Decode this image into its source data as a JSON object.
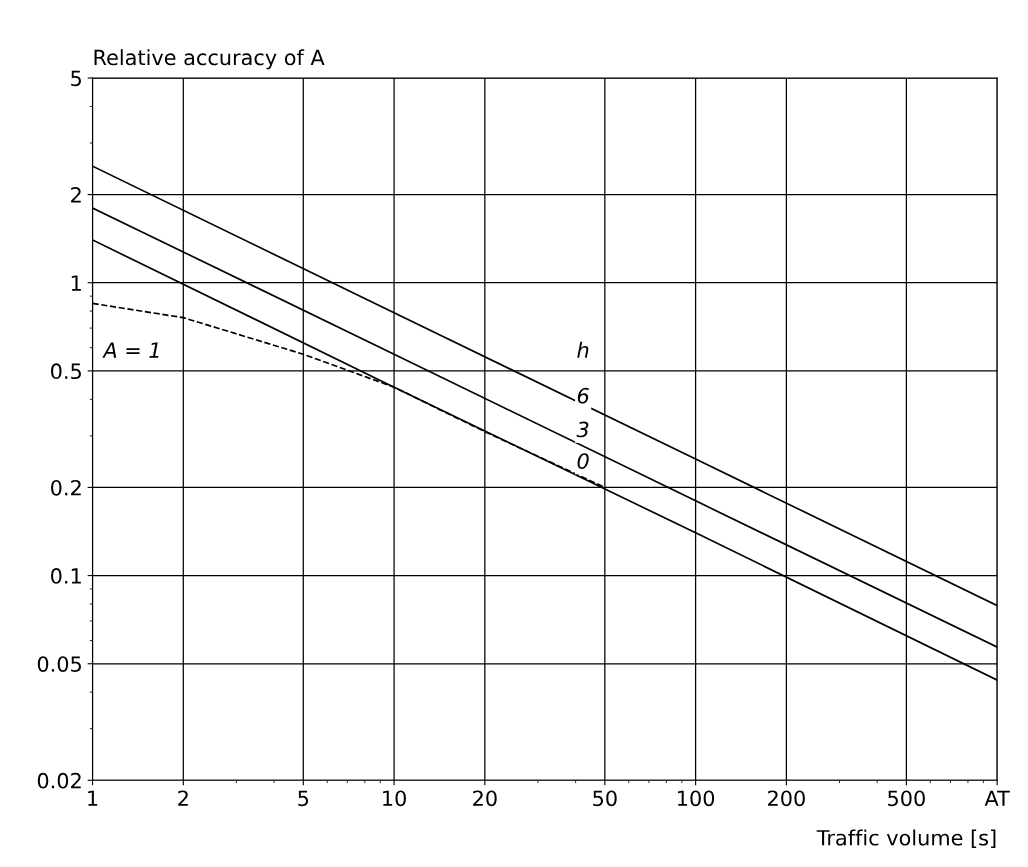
{
  "chart_data": {
    "type": "line",
    "ylabel": "Relative accuracy of A",
    "xlabel": "Traffic volume [s]",
    "log": "xy",
    "grid": true,
    "legend": false,
    "marker": "none",
    "xlim": [
      1,
      1000
    ],
    "xticks": [
      1,
      2,
      5,
      10,
      20,
      50,
      100,
      200,
      500,
      {
        "value": 1000,
        "label": "AT"
      }
    ],
    "ylim": [
      0.02,
      5
    ],
    "yticks": [
      0.02,
      0.05,
      0.1,
      0.2,
      0.5,
      1,
      2,
      5
    ],
    "series": [
      {
        "color": "#000000",
        "line_style": "solid",
        "x": [
          1,
          10,
          100,
          1000
        ],
        "values": [
          2.5,
          0.79,
          0.25,
          0.079
        ]
      },
      {
        "color": "#000000",
        "line_style": "solid",
        "x": [
          1,
          10,
          100,
          1000
        ],
        "values": [
          1.8,
          0.57,
          0.18,
          0.057
        ]
      },
      {
        "color": "#000000",
        "line_style": "solid",
        "x": [
          1,
          10,
          100,
          1000
        ],
        "values": [
          1.4,
          0.44,
          0.14,
          0.044
        ]
      },
      {
        "color": "#000000",
        "line_style": "dashed",
        "x": [
          1,
          2,
          5,
          10,
          20,
          50
        ],
        "values": [
          0.85,
          0.76,
          0.57,
          0.44,
          0.31,
          0.2
        ]
      }
    ],
    "annotations": [
      "h",
      "6",
      "3",
      "0",
      "A = 1"
    ]
  }
}
